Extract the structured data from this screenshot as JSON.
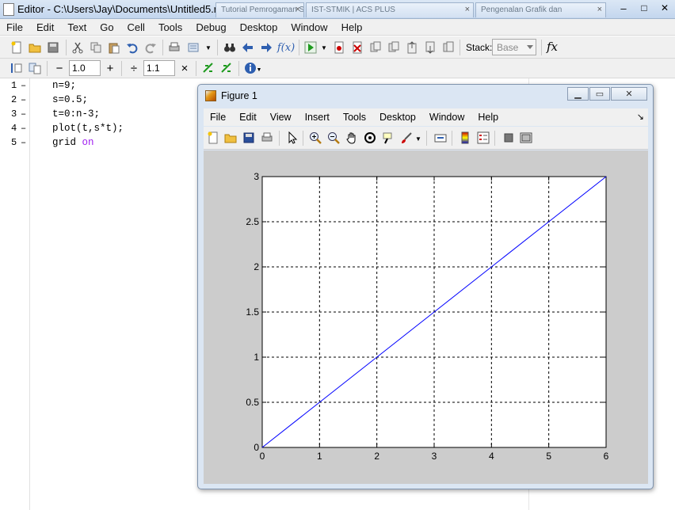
{
  "window": {
    "title": "Editor - C:\\Users\\Jay\\Documents\\Untitled5.m",
    "background_tabs": [
      {
        "label": "Tutorial Pemrogaman S.t",
        "close": "×"
      },
      {
        "label": "IST-STMIK | ACS PLUS",
        "close": "×"
      },
      {
        "label": "Pengenalan Grafik dan",
        "close": "×"
      }
    ],
    "controls": {
      "minimize": "–",
      "maximize": "□",
      "close": "✕"
    }
  },
  "menu": [
    "File",
    "Edit",
    "Text",
    "Go",
    "Cell",
    "Tools",
    "Debug",
    "Desktop",
    "Window",
    "Help"
  ],
  "toolbar": {
    "stack_label": "Stack:",
    "stack_value": "Base",
    "fx_label": "fx"
  },
  "cell_toolbar": {
    "minus": "−",
    "value1": "1.0",
    "plus": "+",
    "divide": "÷",
    "value2": "1.1",
    "times": "×"
  },
  "code_lines": [
    {
      "no": "1",
      "dash": "–",
      "text": "n=9;"
    },
    {
      "no": "2",
      "dash": "–",
      "text": "s=0.5;"
    },
    {
      "no": "3",
      "dash": "–",
      "text": "t=0:n-3;"
    },
    {
      "no": "4",
      "dash": "–",
      "text": "plot(t,s*t);"
    },
    {
      "no": "5",
      "dash": "–",
      "text": "grid ",
      "keyword": "on"
    }
  ],
  "figure": {
    "title": "Figure 1",
    "controls": {
      "minimize": "▁",
      "maximize": "▭",
      "close": "✕"
    },
    "menu": [
      "File",
      "Edit",
      "View",
      "Insert",
      "Tools",
      "Desktop",
      "Window",
      "Help"
    ],
    "dock_icon": "↘"
  },
  "colors": {
    "line": "#0000ff",
    "axes_bg": "#ffffff",
    "figure_bg": "#cccccc",
    "keyword": "#a020f0"
  },
  "chart_data": {
    "type": "line",
    "x": [
      0,
      1,
      2,
      3,
      4,
      5,
      6
    ],
    "y": [
      0,
      0.5,
      1,
      1.5,
      2,
      2.5,
      3
    ],
    "xlim": [
      0,
      6
    ],
    "ylim": [
      0,
      3
    ],
    "xticks": [
      "0",
      "1",
      "2",
      "3",
      "4",
      "5",
      "6"
    ],
    "yticks": [
      "0",
      "0.5",
      "1",
      "1.5",
      "2",
      "2.5",
      "3"
    ],
    "grid": true,
    "title": "",
    "xlabel": "",
    "ylabel": ""
  }
}
